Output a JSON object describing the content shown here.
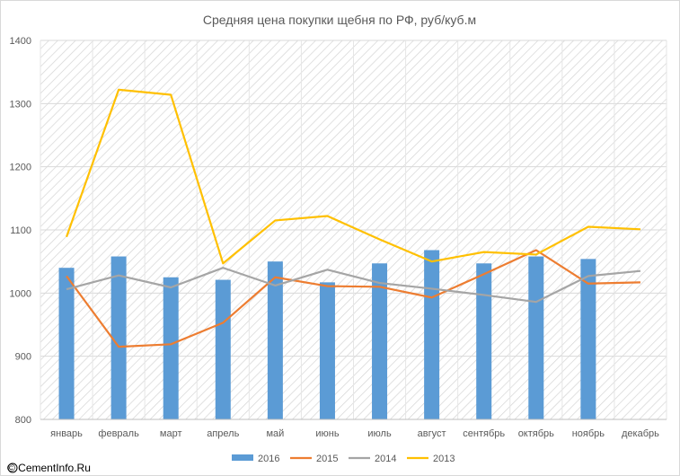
{
  "chart_data": {
    "type": "bar",
    "title": "Средняя цена покупки щебня по РФ, руб/куб.м",
    "categories": [
      "январь",
      "февраль",
      "март",
      "апрель",
      "май",
      "июнь",
      "июль",
      "август",
      "сентябрь",
      "октябрь",
      "ноябрь",
      "декабрь"
    ],
    "ylim": [
      800,
      1400
    ],
    "yticks": [
      800,
      900,
      1000,
      1100,
      1200,
      1300,
      1400
    ],
    "grid": true,
    "legend_position": "bottom",
    "series": [
      {
        "name": "2016",
        "kind": "bar",
        "color": "#5b9bd5",
        "values": [
          1040,
          1058,
          1025,
          1021,
          1050,
          1017,
          1047,
          1068,
          1047,
          1058,
          1054,
          null
        ]
      },
      {
        "name": "2015",
        "kind": "line",
        "color": "#ed7d31",
        "values": [
          1027,
          915,
          919,
          953,
          1025,
          1011,
          1010,
          993,
          1030,
          1068,
          1015,
          1017
        ]
      },
      {
        "name": "2014",
        "kind": "line",
        "color": "#a5a5a5",
        "values": [
          1006,
          1028,
          1009,
          1040,
          1012,
          1037,
          1016,
          1007,
          997,
          986,
          1027,
          1035
        ]
      },
      {
        "name": "2013",
        "kind": "line",
        "color": "#ffc000",
        "values": [
          1089,
          1322,
          1314,
          1047,
          1115,
          1122,
          1085,
          1050,
          1065,
          1061,
          1105,
          1101
        ]
      }
    ]
  },
  "watermark": "© CementInfo.Ru"
}
